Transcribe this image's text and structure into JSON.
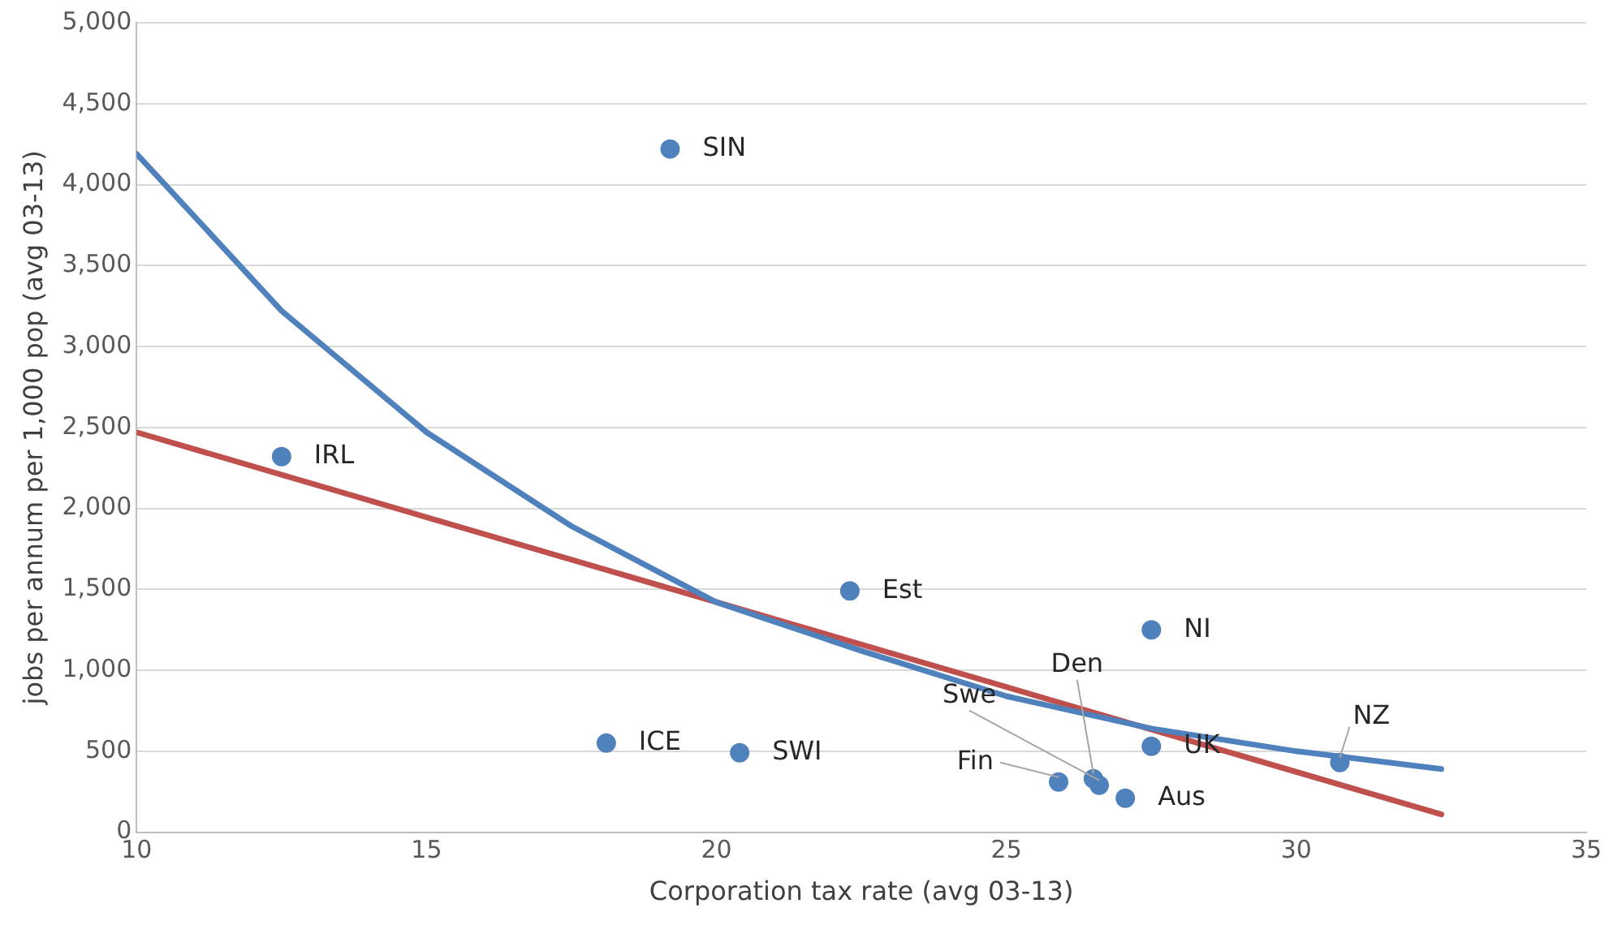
{
  "chart_data": {
    "type": "scatter",
    "xlabel": "Corporation tax rate (avg 03-13)",
    "ylabel": "jobs per annum per 1,000 pop (avg 03-13)",
    "xlim": [
      10,
      35
    ],
    "xticks": [
      10,
      15,
      20,
      25,
      30,
      35
    ],
    "ylim": [
      0,
      5000
    ],
    "yticks": [
      {
        "value": 0,
        "label": "0"
      },
      {
        "value": 500,
        "label": "500"
      },
      {
        "value": 1000,
        "label": "1,000"
      },
      {
        "value": 1500,
        "label": "1,500"
      },
      {
        "value": 2000,
        "label": "2,000"
      },
      {
        "value": 2500,
        "label": "2,500"
      },
      {
        "value": 3000,
        "label": "3,000"
      },
      {
        "value": 3500,
        "label": "3,500"
      },
      {
        "value": 4000,
        "label": "4,000"
      },
      {
        "value": 4500,
        "label": "4,500"
      },
      {
        "value": 5000,
        "label": "5,000"
      }
    ],
    "grid": "y",
    "legend": false,
    "marker": "circle",
    "series": [
      {
        "type": "scatter",
        "color": "#4f81bd",
        "x": [
          19.2,
          12.5,
          22.3,
          27.5,
          18.1,
          20.4,
          27.5,
          30.75,
          25.9,
          26.6,
          26.5,
          27.05
        ],
        "values": [
          4220,
          2320,
          1490,
          1250,
          550,
          490,
          530,
          430,
          310,
          290,
          330,
          210
        ]
      },
      {
        "type": "line",
        "color": "#4f81bd",
        "marker": "none",
        "x": [
          10,
          12.5,
          15,
          17.5,
          20,
          22.5,
          25,
          27.5,
          30,
          32.5
        ],
        "values": [
          4190,
          3220,
          2470,
          1890,
          1420,
          1120,
          840,
          640,
          500,
          390
        ]
      },
      {
        "type": "line",
        "color": "#c0504d",
        "marker": "none",
        "x": [
          10,
          32.5
        ],
        "values": [
          2470,
          110
        ]
      }
    ],
    "annotations": [
      {
        "text": "SIN",
        "x": 19.2,
        "y": 4220
      },
      {
        "text": "IRL",
        "x": 12.5,
        "y": 2320
      },
      {
        "text": "Est",
        "x": 22.3,
        "y": 1490
      },
      {
        "text": "NI",
        "x": 27.5,
        "y": 1250
      },
      {
        "text": "ICE",
        "x": 18.1,
        "y": 550
      },
      {
        "text": "SWI",
        "x": 20.4,
        "y": 490
      },
      {
        "text": "UK",
        "x": 27.5,
        "y": 530
      },
      {
        "text": "NZ",
        "x": 30.75,
        "y": 430
      },
      {
        "text": "Fin",
        "x": 25.9,
        "y": 310
      },
      {
        "text": "Swe",
        "x": 26.6,
        "y": 290
      },
      {
        "text": "Den",
        "x": 26.5,
        "y": 330
      },
      {
        "text": "Aus",
        "x": 27.05,
        "y": 210
      }
    ]
  }
}
